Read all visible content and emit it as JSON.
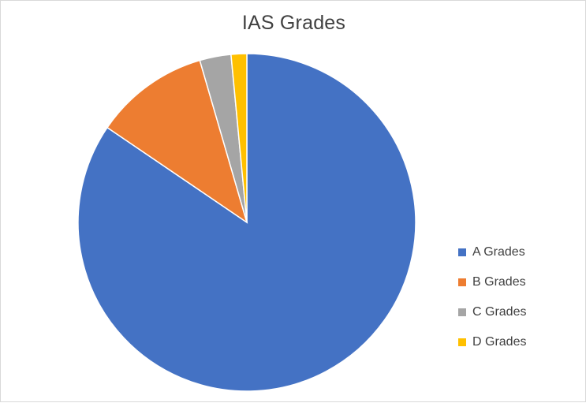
{
  "chart_data": {
    "type": "pie",
    "title": "IAS Grades",
    "categories": [
      "A Grades",
      "B Grades",
      "C Grades",
      "D Grades"
    ],
    "values": [
      84.5,
      11,
      3,
      1.5
    ],
    "colors": [
      "#4472c4",
      "#ed7d31",
      "#a5a5a5",
      "#ffc000"
    ],
    "legend_position": "right"
  }
}
